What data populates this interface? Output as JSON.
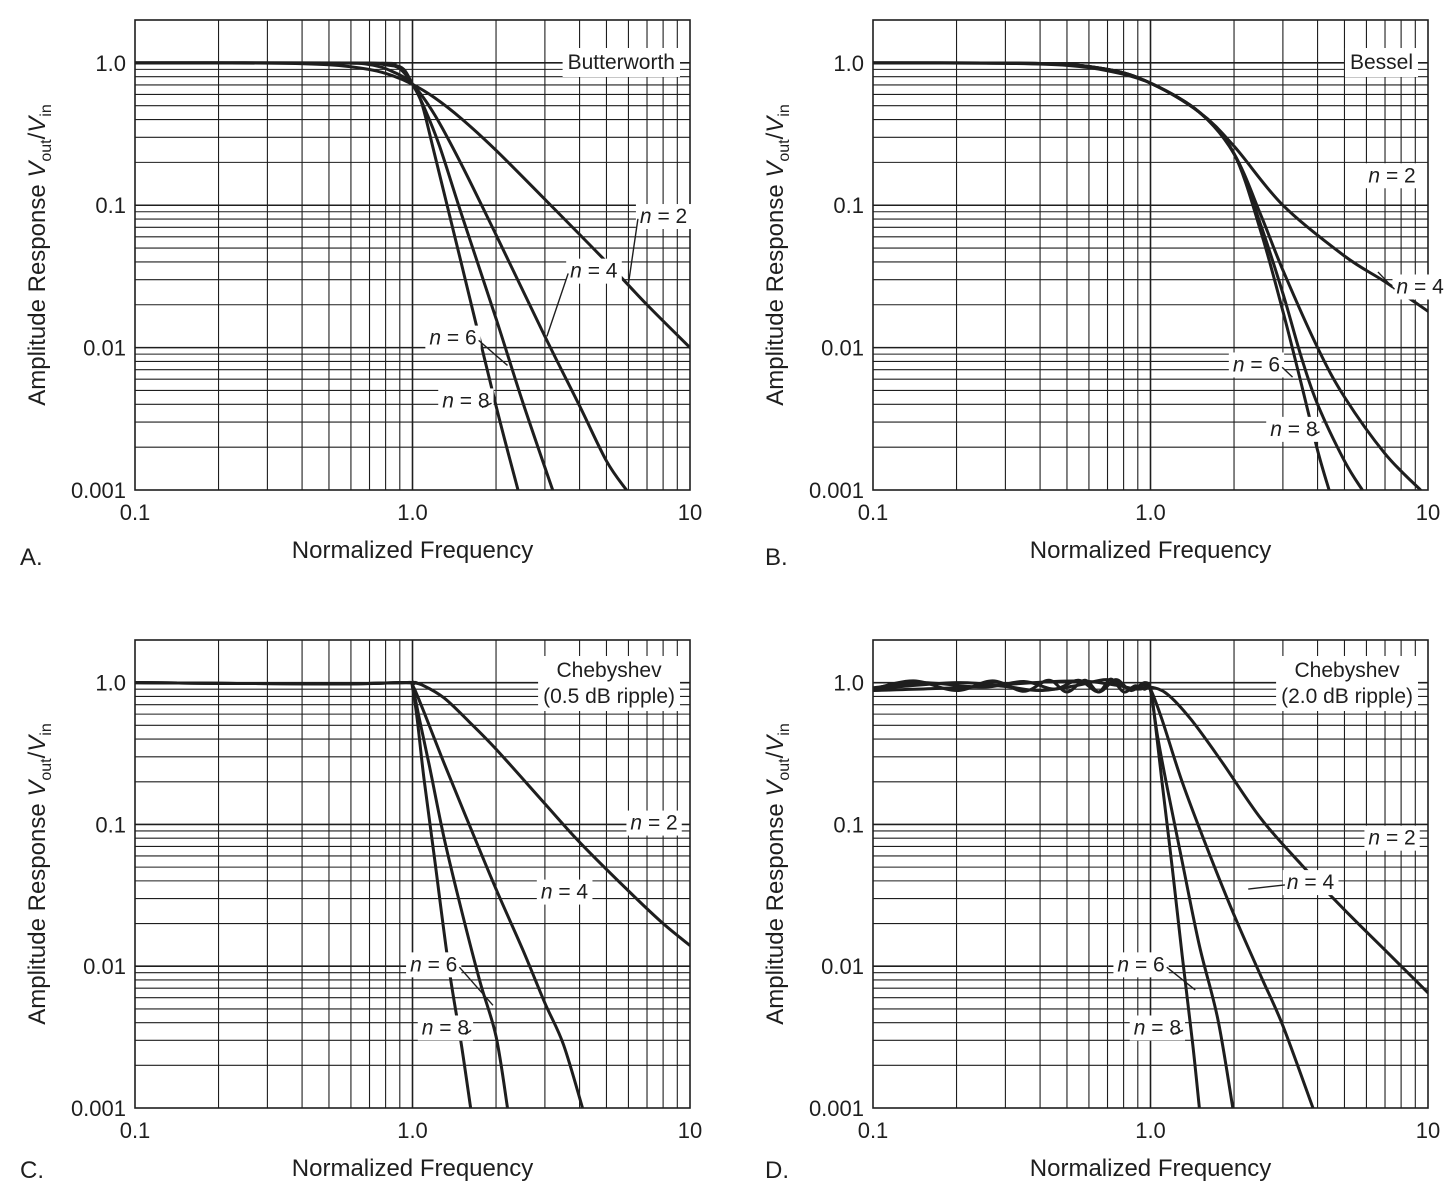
{
  "chart_data": [
    {
      "panel_letter": "A.",
      "type": "line",
      "title": "Butterworth",
      "xlabel": "Normalized Frequency",
      "ylabel": {
        "prefix": "Amplitude Response ",
        "num": "V",
        "num_sub": "out",
        "den": "V",
        "den_sub": "in"
      },
      "x_scale": "log",
      "y_scale": "log",
      "xlim": [
        0.1,
        10
      ],
      "ylim": [
        0.001,
        2
      ],
      "x_ticks": [
        {
          "value": 0.1,
          "label": "0.1"
        },
        {
          "value": 1,
          "label": "1.0"
        },
        {
          "value": 10,
          "label": "10"
        }
      ],
      "y_ticks": [
        {
          "value": 1,
          "label": "1.0"
        },
        {
          "value": 0.1,
          "label": "0.1"
        },
        {
          "value": 0.01,
          "label": "0.01"
        },
        {
          "value": 0.001,
          "label": "0.001"
        }
      ],
      "grid": true,
      "series": [
        {
          "name": "n = 2",
          "x": [
            0.1,
            0.3,
            0.5,
            0.7,
            0.85,
            1.0,
            1.2,
            1.5,
            2.0,
            3.0,
            5.0,
            7.0,
            10.0
          ],
          "y": [
            1.0,
            0.996,
            0.97,
            0.898,
            0.811,
            0.707,
            0.57,
            0.406,
            0.243,
            0.11,
            0.04,
            0.02,
            0.01
          ]
        },
        {
          "name": "n = 4",
          "x": [
            0.1,
            0.5,
            0.7,
            0.85,
            1.0,
            1.2,
            1.5,
            2.0,
            3.0,
            4.0,
            5.0,
            5.9
          ],
          "y": [
            1.0,
            0.998,
            0.972,
            0.866,
            0.707,
            0.434,
            0.194,
            0.062,
            0.012,
            0.0039,
            0.0016,
            0.001
          ]
        },
        {
          "name": "n = 6",
          "x": [
            0.1,
            0.6,
            0.8,
            0.9,
            1.0,
            1.1,
            1.25,
            1.5,
            2.0,
            2.5,
            3.2
          ],
          "y": [
            1.0,
            0.998,
            0.968,
            0.909,
            0.707,
            0.49,
            0.262,
            0.087,
            0.016,
            0.0041,
            0.001
          ]
        },
        {
          "name": "n = 8",
          "x": [
            0.1,
            0.7,
            0.85,
            0.93,
            1.0,
            1.08,
            1.2,
            1.5,
            2.0,
            2.4
          ],
          "y": [
            1.0,
            0.997,
            0.965,
            0.9,
            0.707,
            0.52,
            0.23,
            0.039,
            0.0039,
            0.001
          ]
        }
      ],
      "annotations": [
        {
          "text": "n = 2",
          "x": 6.6,
          "y": 0.075,
          "anchor_x": 6.0,
          "anchor_y": 0.028
        },
        {
          "text": "n = 4",
          "x": 3.7,
          "y": 0.031,
          "anchor_x": 3.05,
          "anchor_y": 0.012
        },
        {
          "text": "n = 6",
          "x": 1.15,
          "y": 0.0105,
          "anchor_x": 2.2,
          "anchor_y": 0.0075
        },
        {
          "text": "n = 8",
          "x": 1.28,
          "y": 0.0038,
          "anchor_x": 1.78,
          "anchor_y": 0.0038
        }
      ]
    },
    {
      "panel_letter": "B.",
      "type": "line",
      "title": "Bessel",
      "xlabel": "Normalized Frequency",
      "ylabel": {
        "prefix": "Amplitude Response ",
        "num": "V",
        "num_sub": "out",
        "den": "V",
        "den_sub": "in"
      },
      "x_scale": "log",
      "y_scale": "log",
      "xlim": [
        0.1,
        10
      ],
      "ylim": [
        0.001,
        2
      ],
      "x_ticks": [
        {
          "value": 0.1,
          "label": "0.1"
        },
        {
          "value": 1,
          "label": "1.0"
        },
        {
          "value": 10,
          "label": "10"
        }
      ],
      "y_ticks": [
        {
          "value": 1,
          "label": "1.0"
        },
        {
          "value": 0.1,
          "label": "0.1"
        },
        {
          "value": 0.01,
          "label": "0.01"
        },
        {
          "value": 0.001,
          "label": "0.001"
        }
      ],
      "grid": true,
      "series": [
        {
          "name": "n = 2",
          "x": [
            0.1,
            0.3,
            0.5,
            0.7,
            1.0,
            1.5,
            2.0,
            3.0,
            5.0,
            7.0,
            10.0
          ],
          "y": [
            1.0,
            0.992,
            0.96,
            0.88,
            0.72,
            0.45,
            0.26,
            0.1,
            0.044,
            0.029,
            0.018
          ]
        },
        {
          "name": "n = 4",
          "x": [
            0.1,
            0.4,
            0.7,
            1.0,
            1.5,
            2.0,
            2.5,
            3.0,
            4.0,
            5.0,
            7.0,
            9.4
          ],
          "y": [
            1.0,
            0.99,
            0.9,
            0.72,
            0.45,
            0.23,
            0.085,
            0.035,
            0.01,
            0.0045,
            0.0018,
            0.001
          ]
        },
        {
          "name": "n = 6",
          "x": [
            0.1,
            0.4,
            0.7,
            1.0,
            1.5,
            2.0,
            2.5,
            3.0,
            3.5,
            4.0,
            5.0,
            5.8
          ],
          "y": [
            1.0,
            0.99,
            0.9,
            0.72,
            0.45,
            0.23,
            0.072,
            0.024,
            0.0085,
            0.004,
            0.0016,
            0.001
          ]
        },
        {
          "name": "n = 8",
          "x": [
            0.1,
            0.4,
            0.7,
            1.0,
            1.5,
            2.0,
            2.5,
            3.0,
            3.5,
            4.0,
            4.4
          ],
          "y": [
            1.0,
            0.99,
            0.9,
            0.72,
            0.45,
            0.23,
            0.065,
            0.018,
            0.0055,
            0.0019,
            0.001
          ]
        }
      ],
      "annotations": [
        {
          "text": "n = 2",
          "x": 6.1,
          "y": 0.145,
          "anchor_x": null,
          "anchor_y": null
        },
        {
          "text": "n = 4",
          "x": 7.7,
          "y": 0.024,
          "anchor_x": 6.6,
          "anchor_y": 0.034
        },
        {
          "text": "n = 6",
          "x": 1.98,
          "y": 0.0068,
          "anchor_x": 3.25,
          "anchor_y": 0.0062
        },
        {
          "text": "n = 8",
          "x": 2.7,
          "y": 0.0024,
          "anchor_x": 3.8,
          "anchor_y": 0.0024
        }
      ]
    },
    {
      "panel_letter": "C.",
      "type": "line",
      "title": "Chebyshev\n(0.5 dB ripple)",
      "xlabel": "Normalized Frequency",
      "ylabel": {
        "prefix": "Amplitude Response ",
        "num": "V",
        "num_sub": "out",
        "den": "V",
        "den_sub": "in"
      },
      "x_scale": "log",
      "y_scale": "log",
      "xlim": [
        0.1,
        10
      ],
      "ylim": [
        0.001,
        2
      ],
      "x_ticks": [
        {
          "value": 0.1,
          "label": "0.1"
        },
        {
          "value": 1,
          "label": "1.0"
        },
        {
          "value": 10,
          "label": "10"
        }
      ],
      "y_ticks": [
        {
          "value": 1,
          "label": "1.0"
        },
        {
          "value": 0.1,
          "label": "0.1"
        },
        {
          "value": 0.01,
          "label": "0.01"
        },
        {
          "value": 0.001,
          "label": "0.001"
        }
      ],
      "grid": true,
      "series": [
        {
          "name": "n = 2",
          "x": [
            0.1,
            0.5,
            0.9,
            1.0,
            1.1,
            1.3,
            1.6,
            2.0,
            3.0,
            4.0,
            6.0,
            8.0,
            10.0
          ],
          "y": [
            1.0,
            0.98,
            1.0,
            1.0,
            0.95,
            0.78,
            0.53,
            0.34,
            0.14,
            0.075,
            0.034,
            0.02,
            0.014
          ]
        },
        {
          "name": "n = 4",
          "x": [
            0.1,
            0.5,
            0.95,
            1.0,
            1.1,
            1.3,
            1.6,
            2.0,
            2.5,
            3.0,
            3.5,
            4.1
          ],
          "y": [
            1.0,
            0.98,
            1.0,
            0.96,
            0.62,
            0.27,
            0.1,
            0.035,
            0.013,
            0.0055,
            0.0028,
            0.001
          ]
        },
        {
          "name": "n = 6",
          "x": [
            0.1,
            0.5,
            0.97,
            1.0,
            1.06,
            1.15,
            1.3,
            1.5,
            1.75,
            2.0,
            2.2
          ],
          "y": [
            1.0,
            0.98,
            1.0,
            0.94,
            0.55,
            0.26,
            0.08,
            0.025,
            0.0078,
            0.0032,
            0.001
          ]
        },
        {
          "name": "n = 8",
          "x": [
            0.1,
            0.5,
            0.98,
            1.0,
            1.04,
            1.1,
            1.2,
            1.35,
            1.5,
            1.62
          ],
          "y": [
            1.0,
            0.98,
            1.0,
            0.93,
            0.55,
            0.21,
            0.058,
            0.01,
            0.0028,
            0.001
          ]
        }
      ],
      "annotations": [
        {
          "text": "n = 2",
          "x": 6.1,
          "y": 0.092,
          "anchor_x": null,
          "anchor_y": null
        },
        {
          "text": "n = 4",
          "x": 2.9,
          "y": 0.03,
          "anchor_x": null,
          "anchor_y": null
        },
        {
          "text": "n = 6",
          "x": 0.98,
          "y": 0.0092,
          "anchor_x": 1.95,
          "anchor_y": 0.0053
        },
        {
          "text": "n = 8",
          "x": 1.08,
          "y": 0.0033,
          "anchor_x": 1.55,
          "anchor_y": 0.0033
        }
      ]
    },
    {
      "panel_letter": "D.",
      "type": "line",
      "title": "Chebyshev\n(2.0 dB ripple)",
      "xlabel": "Normalized Frequency",
      "ylabel": {
        "prefix": "Amplitude Response ",
        "num": "V",
        "num_sub": "out",
        "den": "V",
        "den_sub": "in"
      },
      "x_scale": "log",
      "y_scale": "log",
      "xlim": [
        0.1,
        10
      ],
      "ylim": [
        0.001,
        2
      ],
      "x_ticks": [
        {
          "value": 0.1,
          "label": "0.1"
        },
        {
          "value": 1,
          "label": "1.0"
        },
        {
          "value": 10,
          "label": "10"
        }
      ],
      "y_ticks": [
        {
          "value": 1,
          "label": "1.0"
        },
        {
          "value": 0.1,
          "label": "0.1"
        },
        {
          "value": 0.01,
          "label": "0.01"
        },
        {
          "value": 0.001,
          "label": "0.001"
        }
      ],
      "grid": true,
      "series": [
        {
          "name": "n = 2",
          "x": [
            0.1,
            0.2,
            0.3,
            0.45,
            0.6,
            0.75,
            0.9,
            1.0,
            1.15,
            1.4,
            1.8,
            2.5,
            3.5,
            5.0,
            7.0,
            10.0
          ],
          "y": [
            0.88,
            0.92,
            0.97,
            1.02,
            1.02,
            0.96,
            0.9,
            0.93,
            0.83,
            0.55,
            0.28,
            0.11,
            0.052,
            0.025,
            0.013,
            0.0065
          ]
        },
        {
          "name": "n = 4",
          "x": [
            0.1,
            0.2,
            0.3,
            0.4,
            0.55,
            0.7,
            0.85,
            0.95,
            1.0,
            1.1,
            1.3,
            1.6,
            2.0,
            2.5,
            3.0,
            3.85
          ],
          "y": [
            0.9,
            1.0,
            0.94,
            0.88,
            0.96,
            1.05,
            0.9,
            0.96,
            0.9,
            0.55,
            0.2,
            0.068,
            0.023,
            0.0085,
            0.0038,
            0.001
          ]
        },
        {
          "name": "n = 6",
          "x": [
            0.1,
            0.15,
            0.25,
            0.35,
            0.45,
            0.55,
            0.65,
            0.75,
            0.85,
            0.95,
            1.0,
            1.06,
            1.15,
            1.3,
            1.5,
            1.75,
            1.98
          ],
          "y": [
            0.92,
            1.0,
            0.93,
            1.02,
            0.9,
            1.04,
            0.86,
            1.05,
            0.88,
            1.0,
            0.88,
            0.42,
            0.18,
            0.055,
            0.014,
            0.0042,
            0.001
          ]
        },
        {
          "name": "n = 8",
          "x": [
            0.1,
            0.14,
            0.2,
            0.27,
            0.35,
            0.43,
            0.5,
            0.58,
            0.65,
            0.72,
            0.8,
            0.88,
            0.95,
            1.0,
            1.04,
            1.1,
            1.2,
            1.3,
            1.42,
            1.5
          ],
          "y": [
            0.9,
            1.03,
            0.88,
            1.03,
            0.87,
            1.04,
            0.86,
            1.04,
            0.86,
            1.06,
            0.86,
            0.95,
            0.9,
            0.9,
            0.52,
            0.2,
            0.048,
            0.012,
            0.0028,
            0.001
          ]
        }
      ],
      "annotations": [
        {
          "text": "n = 2",
          "x": 6.1,
          "y": 0.072,
          "anchor_x": null,
          "anchor_y": null
        },
        {
          "text": "n = 4",
          "x": 3.1,
          "y": 0.035,
          "anchor_x": 2.25,
          "anchor_y": 0.035
        },
        {
          "text": "n = 6",
          "x": 0.76,
          "y": 0.0092,
          "anchor_x": 1.45,
          "anchor_y": 0.0068
        },
        {
          "text": "n = 8",
          "x": 0.87,
          "y": 0.0033,
          "anchor_x": 1.2,
          "anchor_y": 0.0033
        }
      ]
    }
  ]
}
